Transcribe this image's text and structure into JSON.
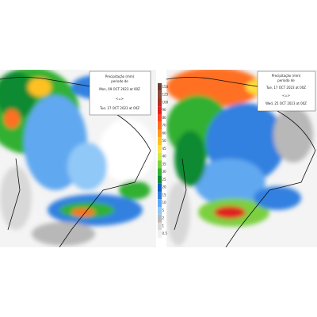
{
  "panels": [
    {
      "legend": {
        "title": "Precipitação (mm)",
        "subtitle": "período de",
        "start": "Mon, 09 OCT 2023 at 00Z",
        "separator": "<=>",
        "end": "Tue, 17 OCT 2023 at 00Z"
      }
    },
    {
      "legend": {
        "title": "Precipitação (mm)",
        "subtitle": "período de",
        "start": "Tue, 17 OCT 2023 at 00Z",
        "separator": "<=>",
        "end": "Wed, 25 OCT 2023 at 00Z"
      }
    }
  ],
  "colorbar": {
    "values": [
      150,
      125,
      100,
      90,
      80,
      70,
      60,
      50,
      45,
      40,
      35,
      30,
      25,
      20,
      15,
      10,
      5,
      2,
      1,
      0.5
    ],
    "colors": [
      "#6b3b2e",
      "#8b4a3a",
      "#b03020",
      "#e02020",
      "#ff4020",
      "#ff7020",
      "#ff9a20",
      "#ffc020",
      "#ffe040",
      "#c8e850",
      "#7cd040",
      "#30b030",
      "#108a30",
      "#1060c0",
      "#3080e0",
      "#60a8f0",
      "#90c8f8",
      "#b8b8b8",
      "#d8d8d8",
      "#f0f0f0"
    ]
  }
}
